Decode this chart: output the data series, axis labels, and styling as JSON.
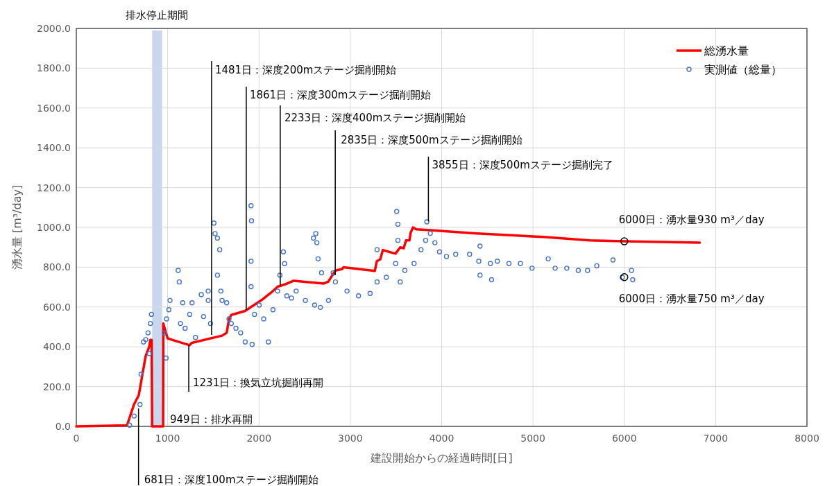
{
  "chart_data": {
    "type": "line",
    "xlabel": "建設開始からの経過時間[日]",
    "ylabel": "湧水量 [m³/day]",
    "xlim": [
      0,
      8000
    ],
    "xticks": [
      0,
      1000,
      2000,
      3000,
      4000,
      5000,
      6000,
      7000,
      8000
    ],
    "ylim": [
      0,
      2000
    ],
    "yticks": [
      {
        "value": 0,
        "label": "0.0"
      },
      {
        "value": 200,
        "label": "200.0"
      },
      {
        "value": 400,
        "label": "400.0"
      },
      {
        "value": 600,
        "label": "600.0"
      },
      {
        "value": 800,
        "label": "800.0"
      },
      {
        "value": 1000,
        "label": "1000.0"
      },
      {
        "value": 1200,
        "label": "1200.0"
      },
      {
        "value": 1400,
        "label": "1400.0"
      },
      {
        "value": 1600,
        "label": "1600.0"
      },
      {
        "value": 1800,
        "label": "1800.0"
      },
      {
        "value": 2000,
        "label": "2000.0"
      }
    ],
    "grid": true,
    "legend": "top right",
    "series": [
      {
        "name": "総湧水量",
        "color": "#ff0000",
        "x": [
          0,
          555,
          631,
          684,
          760,
          798,
          811,
          825,
          830,
          950,
          952,
          1000,
          1240,
          1265,
          1596,
          1646,
          1672,
          1697,
          1848,
          2026,
          2153,
          2204,
          2305,
          2380,
          2710,
          2760,
          2836,
          2912,
          2925,
          3268,
          3290,
          3328,
          3356,
          3495,
          3546,
          3584,
          3610,
          3648,
          3660,
          3686,
          3724,
          3850,
          4355,
          5115,
          5623,
          6000,
          6825
        ],
        "values": [
          0,
          5,
          110,
          157,
          355,
          400,
          435,
          435,
          0,
          0,
          517,
          442,
          408,
          420,
          456,
          470,
          540,
          560,
          580,
          634,
          680,
          702,
          717,
          732,
          718,
          728,
          783,
          791,
          800,
          781,
          830,
          840,
          886,
          868,
          900,
          895,
          935,
          935,
          972,
          1000,
          990,
          987,
          970,
          952,
          935,
          930,
          923
        ]
      },
      {
        "name": "実測値（総量）",
        "type": "scatter",
        "marker": "circle",
        "color": "#4472c4",
        "x": [
          583,
          633,
          697,
          709,
          735,
          760,
          785,
          798,
          811,
          823,
          963,
          983,
          988,
          1013,
          1026,
          1115,
          1127,
          1140,
          1165,
          1191,
          1241,
          1267,
          1305,
          1368,
          1393,
          1444,
          1444,
          1469,
          1507,
          1519,
          1545,
          1545,
          1570,
          1583,
          1596,
          1646,
          1672,
          1697,
          1748,
          1799,
          1849,
          1913,
          1918,
          1913,
          1913,
          1925,
          1951,
          2002,
          2052,
          2103,
          2153,
          2204,
          2229,
          2267,
          2280,
          2305,
          2356,
          2407,
          2508,
          2596,
          2609,
          2622,
          2634,
          2647,
          2672,
          2685,
          2761,
          2812,
          2837,
          2964,
          3090,
          3217,
          3293,
          3293,
          3394,
          3496,
          3508,
          3521,
          3521,
          3546,
          3597,
          3698,
          3774,
          3825,
          3838,
          3876,
          3926,
          3977,
          4053,
          4154,
          4306,
          4407,
          4420,
          4420,
          4534,
          4547,
          4610,
          4737,
          4863,
          4990,
          5167,
          5243,
          5370,
          5496,
          5598,
          5699,
          5876,
          5978,
          6079,
          6092
        ],
        "values": [
          6,
          52,
          110,
          262,
          424,
          436,
          470,
          366,
          517,
          563,
          470,
          343,
          540,
          586,
          633,
          784,
          726,
          517,
          621,
          493,
          563,
          621,
          447,
          662,
          552,
          633,
          680,
          517,
          1022,
          969,
          946,
          760,
          888,
          680,
          633,
          621,
          540,
          517,
          493,
          470,
          424,
          1109,
          1033,
          830,
          702,
          412,
          563,
          610,
          540,
          424,
          586,
          680,
          760,
          877,
          818,
          656,
          645,
          680,
          633,
          946,
          610,
          969,
          923,
          842,
          598,
          772,
          633,
          772,
          726,
          680,
          656,
          668,
          726,
          888,
          749,
          819,
          1080,
          1016,
          935,
          726,
          784,
          819,
          888,
          935,
          1028,
          970,
          923,
          877,
          854,
          865,
          865,
          830,
          906,
          760,
          819,
          737,
          830,
          819,
          819,
          795,
          842,
          795,
          795,
          784,
          784,
          807,
          836,
          749,
          784,
          737
        ]
      }
    ],
    "bands": [
      {
        "axis": "x",
        "from": 830,
        "to": 940,
        "label": "排水停止期間",
        "color": "#c9d7ee"
      }
    ],
    "annotations": [
      {
        "text": "681日：深度100mステージ掘削開始",
        "x": 681,
        "y": 90
      },
      {
        "text": "949日：排水再開",
        "x": 949,
        "y": 0
      },
      {
        "text": "1231日：換気立坑掘削再開",
        "x": 1231,
        "y": 408
      },
      {
        "text": "1481日：深度200mステージ掘削開始",
        "x": 1481,
        "y": 460
      },
      {
        "text": "1861日：深度300mステージ掘削開始",
        "x": 1861,
        "y": 585
      },
      {
        "text": "2233日：深度400mステージ掘削開始",
        "x": 2233,
        "y": 706
      },
      {
        "text": "2835日：深度500mステージ掘削開始",
        "x": 2835,
        "y": 760
      },
      {
        "text": "3855日：深度500mステージ掘削完了",
        "x": 3855,
        "y": 1030
      },
      {
        "text": "6000日：湧水量930 m³／day",
        "x": 6000,
        "y": 930
      },
      {
        "text": "6000日：湧水量750 m³／day",
        "x": 6000,
        "y": 750
      }
    ]
  }
}
